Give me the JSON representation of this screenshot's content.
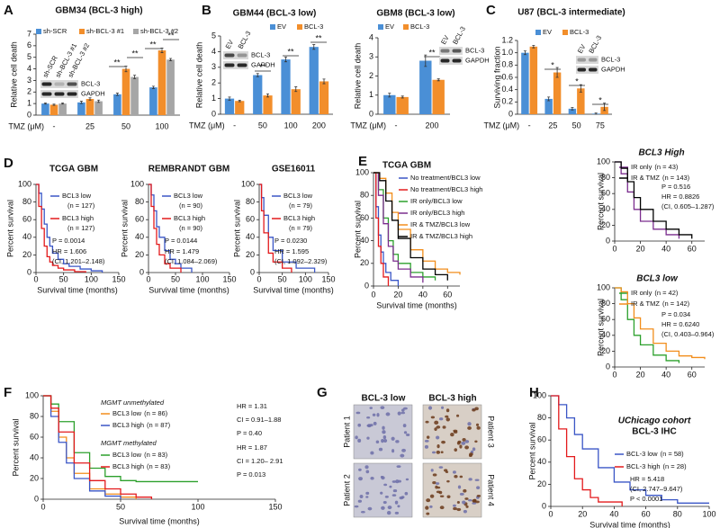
{
  "panel_labels": [
    "A",
    "B",
    "C",
    "D",
    "E",
    "F",
    "G",
    "H"
  ],
  "chart_data": [
    {
      "type": "bar",
      "title": "GBM34 (BCL-3 high)",
      "ylabel": "Relative cell death",
      "xlabel": "TMZ (μM)",
      "categories": [
        "-",
        "25",
        "50",
        "100"
      ],
      "ylim": [
        0,
        7
      ],
      "yticks": [
        0,
        1,
        2,
        3,
        4,
        5,
        6,
        7
      ],
      "series": [
        {
          "name": "sh-SCR",
          "color": "#4a8fd6",
          "values": [
            1.0,
            1.1,
            1.8,
            2.4
          ],
          "errors": [
            0.05,
            0.1,
            0.1,
            0.1
          ]
        },
        {
          "name": "sh-BCL-3 #1",
          "color": "#f28e2b",
          "values": [
            0.9,
            1.4,
            4.0,
            5.6
          ],
          "errors": [
            0.05,
            0.1,
            0.25,
            0.2
          ]
        },
        {
          "name": "sh-BCL-3 #2",
          "color": "#a6a6a6",
          "values": [
            1.0,
            1.2,
            3.3,
            4.8
          ],
          "errors": [
            0.05,
            0.1,
            0.15,
            0.1
          ]
        }
      ],
      "annotations": [
        "**",
        "**",
        "**",
        "**"
      ]
    },
    {
      "type": "bar",
      "title": "GBM44 (BCL-3 low)",
      "ylabel": "Relative cell death",
      "xlabel": "TMZ (μM)",
      "categories": [
        "-",
        "50",
        "100",
        "200"
      ],
      "ylim": [
        0,
        5
      ],
      "yticks": [
        0,
        1,
        2,
        3,
        4,
        5
      ],
      "series": [
        {
          "name": "EV",
          "color": "#4a8fd6",
          "values": [
            1.0,
            2.5,
            3.5,
            4.3
          ],
          "errors": [
            0.1,
            0.1,
            0.15,
            0.15
          ]
        },
        {
          "name": "BCL-3",
          "color": "#f28e2b",
          "values": [
            0.85,
            1.2,
            1.6,
            2.1
          ],
          "errors": [
            0.05,
            0.1,
            0.15,
            0.15
          ]
        }
      ],
      "annotations": [
        "**",
        "**",
        "**"
      ]
    },
    {
      "type": "bar",
      "title": "GBM8 (BCL-3 low)",
      "ylabel": "Relative cell death",
      "xlabel": "TMZ (μM)",
      "categories": [
        "-",
        "200"
      ],
      "ylim": [
        0,
        4
      ],
      "yticks": [
        0,
        1,
        2,
        3,
        4
      ],
      "series": [
        {
          "name": "EV",
          "color": "#4a8fd6",
          "values": [
            1.0,
            2.8
          ],
          "errors": [
            0.1,
            0.3
          ]
        },
        {
          "name": "BCL-3",
          "color": "#f28e2b",
          "values": [
            0.9,
            1.8
          ],
          "errors": [
            0.05,
            0.05
          ]
        }
      ],
      "annotations": [
        "**"
      ]
    },
    {
      "type": "bar",
      "title": "U87 (BCL-3 intermediate)",
      "ylabel": "Surviving fraction",
      "xlabel": "TMZ (μM)",
      "categories": [
        "-",
        "25",
        "50",
        "75"
      ],
      "ylim": [
        0,
        1.2
      ],
      "yticks": [
        0,
        0.2,
        0.4,
        0.6,
        0.8,
        {
          "value": 1,
          "label": "1.0"
        },
        1.2
      ],
      "series": [
        {
          "name": "EV",
          "color": "#4a8fd6",
          "values": [
            1.0,
            0.25,
            0.09,
            0.01
          ],
          "errors": [
            0.03,
            0.03,
            0.02,
            0.01
          ]
        },
        {
          "name": "BCL-3",
          "color": "#f28e2b",
          "values": [
            1.1,
            0.68,
            0.42,
            0.12
          ],
          "errors": [
            0.02,
            0.08,
            0.06,
            0.06
          ]
        }
      ],
      "annotations": [
        "*",
        "*",
        "*"
      ]
    },
    {
      "type": "step",
      "title": "TCGA GBM",
      "ylabel": "Percent survival",
      "xlabel": "Survival time (months)",
      "xlim": [
        0,
        150
      ],
      "xticks": [
        0,
        50,
        100,
        150
      ],
      "ylim": [
        0,
        100
      ],
      "yticks": [
        0,
        20,
        40,
        60,
        80,
        100
      ],
      "series": [
        {
          "name": "BCL3 low",
          "n_label": "(n = 127)",
          "color": "#3a56c6",
          "x": [
            0,
            5,
            10,
            15,
            20,
            25,
            30,
            40,
            50,
            60,
            80,
            100,
            120
          ],
          "values": [
            100,
            90,
            72,
            55,
            40,
            30,
            22,
            15,
            10,
            7,
            4,
            2,
            0
          ]
        },
        {
          "name": "BCL3 high",
          "n_label": "(n = 127)",
          "color": "#e31a1c",
          "x": [
            0,
            5,
            10,
            15,
            20,
            25,
            30,
            40,
            50,
            70,
            90
          ],
          "values": [
            100,
            75,
            50,
            30,
            18,
            12,
            8,
            5,
            3,
            1,
            0
          ]
        }
      ],
      "stats": [
        "P = 0.0014",
        "HR = 1.606",
        "(CI, 1.201–2.148)"
      ]
    },
    {
      "type": "step",
      "title": "REMBRANDT GBM",
      "ylabel": "Percent survival",
      "xlabel": "Survival time (months)",
      "xlim": [
        0,
        150
      ],
      "xticks": [
        0,
        50,
        100,
        150
      ],
      "ylim": [
        0,
        100
      ],
      "yticks": [
        0,
        20,
        40,
        60,
        80,
        100
      ],
      "series": [
        {
          "name": "BCL3 low",
          "n_label": "(n = 90)",
          "color": "#3a56c6",
          "x": [
            0,
            5,
            10,
            15,
            20,
            30,
            40,
            50,
            60,
            80
          ],
          "values": [
            100,
            88,
            70,
            52,
            40,
            25,
            15,
            10,
            5,
            0
          ]
        },
        {
          "name": "BCL3 high",
          "n_label": "(n = 90)",
          "color": "#e31a1c",
          "x": [
            0,
            5,
            10,
            15,
            20,
            30,
            40,
            60
          ],
          "values": [
            100,
            75,
            50,
            32,
            20,
            10,
            5,
            0
          ]
        }
      ],
      "stats": [
        "P = 0.0144",
        "HR = 1.479",
        "(CI, 1.084–2.069)"
      ]
    },
    {
      "type": "step",
      "title": "GSE16011",
      "ylabel": "Percent survival",
      "xlabel": "Survival time (months)",
      "xlim": [
        0,
        150
      ],
      "xticks": [
        0,
        50,
        100,
        150
      ],
      "ylim": [
        0,
        100
      ],
      "yticks": [
        0,
        20,
        40,
        60,
        80,
        100
      ],
      "series": [
        {
          "name": "BCL3 low",
          "n_label": "(n = 79)",
          "color": "#3a56c6",
          "x": [
            0,
            5,
            10,
            20,
            30,
            50,
            80,
            120
          ],
          "values": [
            100,
            85,
            65,
            40,
            25,
            12,
            5,
            0
          ]
        },
        {
          "name": "BCL3 high",
          "n_label": "(n = 79)",
          "color": "#e31a1c",
          "x": [
            0,
            5,
            10,
            20,
            30,
            50,
            70
          ],
          "values": [
            100,
            70,
            45,
            22,
            12,
            5,
            0
          ]
        }
      ],
      "stats": [
        "P = 0.0230",
        "HR = 1.595",
        "(CI, 1.092–2.329)"
      ]
    },
    {
      "type": "step",
      "title": "TCGA GBM",
      "ylabel": "Percent survival",
      "xlabel": "Survival time (months)",
      "xlim": [
        0,
        70
      ],
      "xticks": [
        0,
        20,
        40,
        60
      ],
      "ylim": [
        0,
        100
      ],
      "yticks": [
        0,
        20,
        40,
        60,
        80,
        100
      ],
      "series": [
        {
          "name": "No treatment/BCL3 low",
          "color": "#3a56c6",
          "x": [
            0,
            2,
            4,
            6,
            8,
            10,
            14,
            20
          ],
          "values": [
            100,
            70,
            45,
            30,
            20,
            12,
            5,
            0
          ]
        },
        {
          "name": "No treatment/BCL3 high",
          "color": "#e31a1c",
          "x": [
            0,
            2,
            4,
            6,
            8,
            12
          ],
          "values": [
            100,
            60,
            35,
            20,
            8,
            0
          ]
        },
        {
          "name": "IR only/BCL3 low",
          "color": "#2ca02c",
          "x": [
            0,
            4,
            8,
            12,
            16,
            20,
            30,
            40,
            50
          ],
          "values": [
            100,
            85,
            60,
            40,
            28,
            20,
            12,
            8,
            5
          ]
        },
        {
          "name": "IR only/BCL3 high",
          "color": "#7b2d8e",
          "x": [
            0,
            4,
            8,
            12,
            16,
            20,
            30,
            40
          ],
          "values": [
            100,
            80,
            55,
            35,
            22,
            15,
            8,
            3
          ]
        },
        {
          "name": "IR & TMZ/BCL3 low",
          "color": "#f28e1c",
          "x": [
            0,
            5,
            10,
            15,
            20,
            30,
            40,
            50,
            60,
            70
          ],
          "values": [
            100,
            95,
            82,
            65,
            50,
            32,
            22,
            15,
            12,
            10
          ]
        },
        {
          "name": "IR & TMZ/BCL3 high",
          "color": "#000000",
          "x": [
            0,
            5,
            10,
            15,
            20,
            30,
            40,
            50,
            60
          ],
          "values": [
            100,
            93,
            75,
            58,
            42,
            25,
            15,
            10,
            5
          ]
        }
      ]
    },
    {
      "type": "step",
      "title": "BCL3 High",
      "ylabel": "Percent survival",
      "xlim": [
        0,
        70
      ],
      "xticks": [
        0,
        20,
        40,
        60
      ],
      "ylim": [
        0,
        100
      ],
      "yticks": [
        0,
        20,
        40,
        60,
        80,
        100
      ],
      "series": [
        {
          "name": "IR only",
          "n_label": "(n = 43)",
          "color": "#7b2d8e",
          "x": [
            0,
            5,
            10,
            15,
            20,
            30,
            40,
            50
          ],
          "values": [
            100,
            85,
            62,
            40,
            25,
            15,
            8,
            3
          ]
        },
        {
          "name": "IR & TMZ",
          "n_label": "(n = 143)",
          "color": "#000000",
          "x": [
            0,
            5,
            10,
            15,
            20,
            30,
            40,
            50,
            60
          ],
          "values": [
            100,
            92,
            75,
            55,
            40,
            25,
            15,
            8,
            3
          ]
        }
      ],
      "stats": [
        "P = 0.516",
        "HR = 0.8826",
        "(CI, 0.605–1.287)"
      ]
    },
    {
      "type": "step",
      "title": "BCL3 low",
      "ylabel": "Percent survival",
      "xlim": [
        0,
        70
      ],
      "xticks": [
        0,
        20,
        40,
        60
      ],
      "ylim": [
        0,
        100
      ],
      "yticks": [
        0,
        20,
        40,
        60,
        80,
        100
      ],
      "series": [
        {
          "name": "IR only",
          "n_label": "(n = 42)",
          "color": "#2ca02c",
          "x": [
            0,
            5,
            10,
            15,
            20,
            30,
            40,
            50
          ],
          "values": [
            100,
            85,
            60,
            40,
            28,
            15,
            8,
            5
          ]
        },
        {
          "name": "IR & TMZ",
          "n_label": "(n = 142)",
          "color": "#f28e1c",
          "x": [
            0,
            5,
            10,
            15,
            20,
            30,
            40,
            50,
            60,
            70
          ],
          "values": [
            100,
            95,
            80,
            62,
            48,
            30,
            20,
            14,
            12,
            10
          ]
        }
      ],
      "stats": [
        "P = 0.034",
        "HR = 0.6240",
        "(CI, 0.403–0.964)"
      ]
    },
    {
      "type": "step",
      "ylabel": "Percent survival",
      "xlabel": "Survival time (months)",
      "xlim": [
        0,
        150
      ],
      "xticks": [
        0,
        50,
        100,
        150
      ],
      "ylim": [
        0,
        100
      ],
      "yticks": [
        0,
        20,
        40,
        60,
        80,
        100
      ],
      "legend_headings": [
        "MGMT unmethylated",
        "MGMT methylated"
      ],
      "series": [
        {
          "name": "BCL3 low",
          "n_label": "(n = 86)",
          "color": "#f28e1c",
          "x": [
            0,
            5,
            10,
            15,
            20,
            30,
            40,
            50,
            60
          ],
          "values": [
            100,
            85,
            60,
            40,
            25,
            10,
            5,
            2,
            0
          ]
        },
        {
          "name": "BCL3 high",
          "n_label": "(n = 87)",
          "color": "#3a56c6",
          "x": [
            0,
            5,
            10,
            15,
            20,
            30,
            40,
            50
          ],
          "values": [
            100,
            80,
            55,
            35,
            20,
            8,
            3,
            0
          ]
        },
        {
          "name": "BCL3 low",
          "n_label": "(n = 83)",
          "color": "#2ca02c",
          "x": [
            0,
            5,
            10,
            20,
            30,
            40,
            50,
            60,
            100
          ],
          "values": [
            100,
            92,
            75,
            45,
            30,
            22,
            18,
            17,
            17
          ]
        },
        {
          "name": "BCL3 high",
          "n_label": "(n = 83)",
          "color": "#e31a1c",
          "x": [
            0,
            5,
            10,
            20,
            30,
            40,
            50,
            60,
            70
          ],
          "values": [
            100,
            88,
            65,
            35,
            18,
            10,
            5,
            2,
            0
          ]
        }
      ],
      "stats": [
        "HR = 1.31",
        "CI = 0.91–1.88",
        "P = 0.40",
        "HR = 1.87",
        "CI = 1.20– 2.91",
        "P = 0.013"
      ]
    },
    {
      "type": "step",
      "title": "UChicago cohort",
      "subtitle": "BCL-3 IHC",
      "ylabel": "Percent survival",
      "xlabel": "Survival time (months)",
      "xlim": [
        0,
        100
      ],
      "xticks": [
        0,
        20,
        40,
        60,
        80,
        100
      ],
      "ylim": [
        0,
        100
      ],
      "yticks": [
        0,
        20,
        40,
        60,
        80,
        100
      ],
      "series": [
        {
          "name": "BCL-3 low",
          "n_label": "(n = 58)",
          "color": "#3a56c6",
          "x": [
            0,
            5,
            10,
            15,
            20,
            30,
            40,
            50,
            60,
            70,
            80,
            100
          ],
          "values": [
            100,
            92,
            80,
            65,
            52,
            35,
            22,
            15,
            10,
            6,
            3,
            3
          ]
        },
        {
          "name": "BCL-3 high",
          "n_label": "(n = 28)",
          "color": "#e31a1c",
          "x": [
            0,
            5,
            10,
            15,
            20,
            25,
            30,
            45
          ],
          "values": [
            100,
            70,
            45,
            25,
            15,
            8,
            4,
            0
          ]
        }
      ],
      "stats": [
        "HR = 5.418",
        "(CI, 2.747–9.647)",
        "P < 0.0001"
      ]
    }
  ],
  "blots": [
    {
      "lanes": [
        "sh-SCR",
        "sh-BCL-3 #1",
        "sh-BCL-3 #2"
      ],
      "bands": [
        "BCL-3",
        "GAPDH"
      ]
    },
    {
      "lanes": [
        "EV",
        "BCL-3"
      ],
      "bands": [
        "BCL-3",
        "GAPDH"
      ]
    },
    {
      "lanes": [
        "EV",
        "BCL-3"
      ],
      "bands": [
        "BCL-3",
        "GAPDH"
      ]
    },
    {
      "lanes": [
        "EV",
        "BCL-3"
      ],
      "bands": [
        "BCL-3",
        "GAPDH"
      ]
    }
  ],
  "ihc": {
    "columns": [
      "BCL-3 low",
      "BCL-3 high"
    ],
    "patients": [
      "Patient 1",
      "Patient 2",
      "Patient 3",
      "Patient 4"
    ]
  }
}
